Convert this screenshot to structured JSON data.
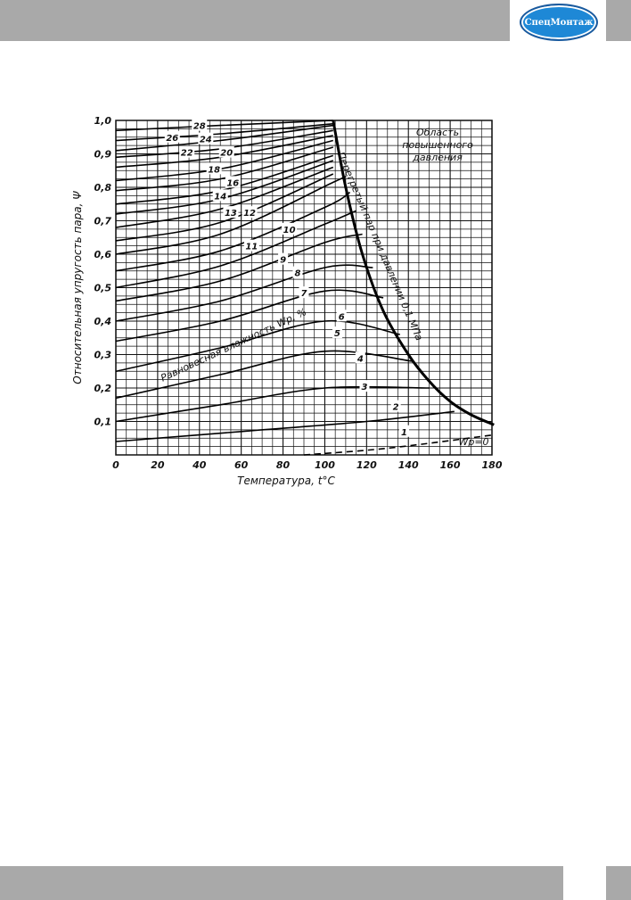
{
  "header": {
    "logo_text": "СпецМонтаж",
    "accent": "#1e88d6",
    "band": "#a9a9a9"
  },
  "chart_data": {
    "type": "line",
    "xlabel": "Температура, t°C",
    "ylabel": "Относительная упругость пара, Ψ",
    "xlim": [
      0,
      180
    ],
    "ylim": [
      0,
      1.0
    ],
    "x_ticks": [
      "0",
      "20",
      "40",
      "60",
      "80",
      "100",
      "120",
      "140",
      "160",
      "180"
    ],
    "y_ticks": [
      "0,1",
      "0,2",
      "0,3",
      "0,4",
      "0,5",
      "0,6",
      "0,7",
      "0,8",
      "0,9",
      "1,0"
    ],
    "grid": true,
    "annotations": {
      "region": [
        "Область",
        "повышенного",
        "давления"
      ],
      "boundary": "Перегретый пар при давлении 0,1 МПа",
      "family": "Равновесная влажность Wp, %",
      "zero": "Wp=0"
    },
    "boundary_curve": [
      [
        104,
        1.0
      ],
      [
        110,
        0.8
      ],
      [
        118,
        0.6
      ],
      [
        128,
        0.43
      ],
      [
        140,
        0.3
      ],
      [
        150,
        0.22
      ],
      [
        160,
        0.16
      ],
      [
        170,
        0.12
      ],
      [
        181,
        0.09
      ]
    ],
    "series": [
      {
        "name": "28",
        "points": [
          [
            0,
            0.97
          ],
          [
            50,
            0.985
          ],
          [
            104,
            1.0
          ]
        ]
      },
      {
        "name": "26",
        "points": [
          [
            0,
            0.94
          ],
          [
            50,
            0.96
          ],
          [
            104,
            0.99
          ]
        ]
      },
      {
        "name": "24",
        "points": [
          [
            0,
            0.91
          ],
          [
            50,
            0.94
          ],
          [
            104,
            0.985
          ]
        ]
      },
      {
        "name": "22",
        "points": [
          [
            0,
            0.89
          ],
          [
            50,
            0.915
          ],
          [
            104,
            0.97
          ]
        ]
      },
      {
        "name": "20",
        "points": [
          [
            0,
            0.86
          ],
          [
            50,
            0.89
          ],
          [
            104,
            0.955
          ]
        ]
      },
      {
        "name": "18",
        "points": [
          [
            0,
            0.82
          ],
          [
            50,
            0.855
          ],
          [
            104,
            0.94
          ]
        ]
      },
      {
        "name": "16",
        "points": [
          [
            0,
            0.79
          ],
          [
            50,
            0.825
          ],
          [
            104,
            0.92
          ]
        ]
      },
      {
        "name": "14",
        "points": [
          [
            0,
            0.75
          ],
          [
            50,
            0.79
          ],
          [
            104,
            0.895
          ]
        ]
      },
      {
        "name": "13",
        "points": [
          [
            0,
            0.72
          ],
          [
            50,
            0.765
          ],
          [
            104,
            0.88
          ]
        ]
      },
      {
        "name": "12",
        "points": [
          [
            0,
            0.68
          ],
          [
            50,
            0.735
          ],
          [
            104,
            0.86
          ]
        ]
      },
      {
        "name": "11",
        "points": [
          [
            0,
            0.64
          ],
          [
            50,
            0.695
          ],
          [
            104,
            0.84
          ]
        ]
      },
      {
        "name": "10",
        "points": [
          [
            0,
            0.6
          ],
          [
            50,
            0.66
          ],
          [
            104,
            0.815
          ],
          [
            109,
            0.83
          ]
        ]
      },
      {
        "name": "9",
        "points": [
          [
            0,
            0.55
          ],
          [
            50,
            0.61
          ],
          [
            100,
            0.74
          ],
          [
            112,
            0.785
          ]
        ]
      },
      {
        "name": "8",
        "points": [
          [
            0,
            0.5
          ],
          [
            50,
            0.565
          ],
          [
            100,
            0.69
          ],
          [
            115,
            0.73
          ]
        ]
      },
      {
        "name": "7",
        "points": [
          [
            0,
            0.46
          ],
          [
            50,
            0.52
          ],
          [
            100,
            0.635
          ],
          [
            118,
            0.66
          ]
        ]
      },
      {
        "name": "6",
        "points": [
          [
            0,
            0.4
          ],
          [
            50,
            0.46
          ],
          [
            100,
            0.56
          ],
          [
            123,
            0.56
          ]
        ]
      },
      {
        "name": "5",
        "points": [
          [
            0,
            0.34
          ],
          [
            50,
            0.4
          ],
          [
            100,
            0.49
          ],
          [
            128,
            0.47
          ]
        ]
      },
      {
        "name": "4",
        "points": [
          [
            0,
            0.25
          ],
          [
            50,
            0.32
          ],
          [
            100,
            0.4
          ],
          [
            136,
            0.36
          ]
        ]
      },
      {
        "name": "3",
        "points": [
          [
            0,
            0.17
          ],
          [
            50,
            0.24
          ],
          [
            100,
            0.31
          ],
          [
            142,
            0.28
          ]
        ]
      },
      {
        "name": "2",
        "points": [
          [
            0,
            0.1
          ],
          [
            50,
            0.15
          ],
          [
            100,
            0.2
          ],
          [
            150,
            0.2
          ]
        ]
      },
      {
        "name": "1",
        "points": [
          [
            0,
            0.04
          ],
          [
            60,
            0.07
          ],
          [
            120,
            0.1
          ],
          [
            162,
            0.13
          ]
        ]
      },
      {
        "name": "Wp=0",
        "dashed": true,
        "points": [
          [
            90,
            0.0
          ],
          [
            130,
            0.02
          ],
          [
            181,
            0.06
          ]
        ]
      }
    ],
    "curve_labels": [
      {
        "text": "28",
        "x": 40,
        "y": 0.985
      },
      {
        "text": "26",
        "x": 27,
        "y": 0.95
      },
      {
        "text": "24",
        "x": 43,
        "y": 0.945
      },
      {
        "text": "22",
        "x": 34,
        "y": 0.905
      },
      {
        "text": "20",
        "x": 53,
        "y": 0.905
      },
      {
        "text": "18",
        "x": 47,
        "y": 0.855
      },
      {
        "text": "16",
        "x": 56,
        "y": 0.815
      },
      {
        "text": "14",
        "x": 50,
        "y": 0.775
      },
      {
        "text": "13",
        "x": 55,
        "y": 0.725
      },
      {
        "text": "12",
        "x": 64,
        "y": 0.725
      },
      {
        "text": "11",
        "x": 65,
        "y": 0.625
      },
      {
        "text": "10",
        "x": 83,
        "y": 0.675
      },
      {
        "text": "9",
        "x": 80,
        "y": 0.585
      },
      {
        "text": "8",
        "x": 87,
        "y": 0.545
      },
      {
        "text": "7",
        "x": 90,
        "y": 0.485
      },
      {
        "text": "6",
        "x": 108,
        "y": 0.415
      },
      {
        "text": "5",
        "x": 106,
        "y": 0.365
      },
      {
        "text": "4",
        "x": 117,
        "y": 0.29
      },
      {
        "text": "3",
        "x": 119,
        "y": 0.205
      },
      {
        "text": "2",
        "x": 134,
        "y": 0.145
      },
      {
        "text": "1",
        "x": 138,
        "y": 0.07
      }
    ]
  }
}
